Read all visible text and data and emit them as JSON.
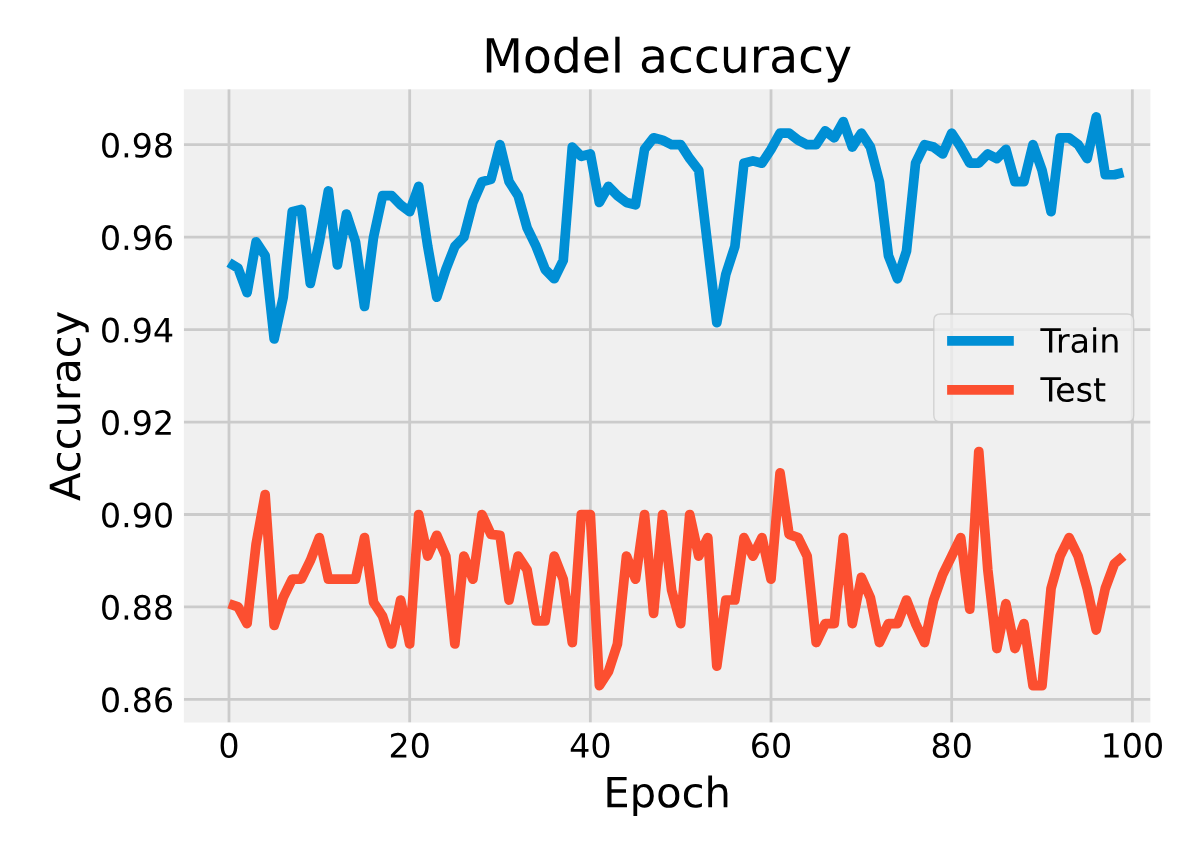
{
  "chart_data": {
    "type": "line",
    "title": "Model accuracy",
    "xlabel": "Epoch",
    "ylabel": "Accuracy",
    "x": [
      0,
      1,
      2,
      3,
      4,
      5,
      6,
      7,
      8,
      9,
      10,
      11,
      12,
      13,
      14,
      15,
      16,
      17,
      18,
      19,
      20,
      21,
      22,
      23,
      24,
      25,
      26,
      27,
      28,
      29,
      30,
      31,
      32,
      33,
      34,
      35,
      36,
      37,
      38,
      39,
      40,
      41,
      42,
      43,
      44,
      45,
      46,
      47,
      48,
      49,
      50,
      51,
      52,
      53,
      54,
      55,
      56,
      57,
      58,
      59,
      60,
      61,
      62,
      63,
      64,
      65,
      66,
      67,
      68,
      69,
      70,
      71,
      72,
      73,
      74,
      75,
      76,
      77,
      78,
      79,
      80,
      81,
      82,
      83,
      84,
      85,
      86,
      87,
      88,
      89,
      90,
      91,
      92,
      93,
      94,
      95,
      96,
      97,
      98,
      99
    ],
    "series": [
      {
        "name": "Train",
        "color": "#008fd5",
        "values": [
          0.9545,
          0.9533,
          0.948,
          0.959,
          0.956,
          0.938,
          0.947,
          0.9655,
          0.966,
          0.95,
          0.959,
          0.97,
          0.954,
          0.965,
          0.959,
          0.945,
          0.96,
          0.969,
          0.969,
          0.967,
          0.9655,
          0.971,
          0.958,
          0.947,
          0.953,
          0.958,
          0.96,
          0.9675,
          0.972,
          0.9725,
          0.98,
          0.972,
          0.969,
          0.962,
          0.958,
          0.953,
          0.951,
          0.955,
          0.9795,
          0.9775,
          0.978,
          0.9675,
          0.971,
          0.969,
          0.9675,
          0.967,
          0.979,
          0.9815,
          0.981,
          0.98,
          0.98,
          0.977,
          0.9745,
          0.958,
          0.9415,
          0.952,
          0.958,
          0.976,
          0.9765,
          0.976,
          0.979,
          0.9825,
          0.9825,
          0.981,
          0.98,
          0.98,
          0.983,
          0.9815,
          0.985,
          0.9795,
          0.9825,
          0.9795,
          0.972,
          0.956,
          0.951,
          0.957,
          0.976,
          0.98,
          0.9795,
          0.978,
          0.9825,
          0.9795,
          0.976,
          0.976,
          0.978,
          0.977,
          0.979,
          0.972,
          0.972,
          0.98,
          0.9745,
          0.9655,
          0.9815,
          0.9815,
          0.98,
          0.977,
          0.986,
          0.9735,
          0.9735,
          0.974
        ]
      },
      {
        "name": "Test",
        "color": "#fc4f30",
        "values": [
          0.8807,
          0.88,
          0.8764,
          0.8936,
          0.9043,
          0.876,
          0.882,
          0.886,
          0.886,
          0.89,
          0.895,
          0.886,
          0.886,
          0.886,
          0.886,
          0.895,
          0.881,
          0.878,
          0.872,
          0.8815,
          0.872,
          0.9,
          0.891,
          0.8955,
          0.891,
          0.872,
          0.891,
          0.886,
          0.9,
          0.8957,
          0.8955,
          0.8815,
          0.891,
          0.888,
          0.877,
          0.877,
          0.891,
          0.886,
          0.8723,
          0.9,
          0.9,
          0.863,
          0.866,
          0.872,
          0.891,
          0.886,
          0.9,
          0.8786,
          0.9,
          0.8836,
          0.8764,
          0.9,
          0.891,
          0.895,
          0.8672,
          0.8815,
          0.8815,
          0.895,
          0.891,
          0.895,
          0.886,
          0.909,
          0.8957,
          0.895,
          0.891,
          0.8723,
          0.8764,
          0.8764,
          0.895,
          0.8764,
          0.8864,
          0.882,
          0.8723,
          0.8764,
          0.8764,
          0.8815,
          0.8764,
          0.8723,
          0.8815,
          0.887,
          0.891,
          0.895,
          0.8795,
          0.9136,
          0.888,
          0.871,
          0.8807,
          0.871,
          0.8764,
          0.863,
          0.863,
          0.884,
          0.891,
          0.895,
          0.891,
          0.884,
          0.875,
          0.884,
          0.8893,
          0.891
        ]
      }
    ],
    "xlim": [
      -5,
      102
    ],
    "ylim": [
      0.855,
      0.992
    ],
    "xticks": [
      0,
      20,
      40,
      60,
      80,
      100
    ],
    "yticks": [
      {
        "value": 0.86,
        "label": "0.86"
      },
      {
        "value": 0.88,
        "label": "0.88"
      },
      {
        "value": 0.9,
        "label": "0.90"
      },
      {
        "value": 0.92,
        "label": "0.92"
      },
      {
        "value": 0.94,
        "label": "0.94"
      },
      {
        "value": 0.96,
        "label": "0.96"
      },
      {
        "value": 0.98,
        "label": "0.98"
      }
    ],
    "grid": true,
    "legend": "center right",
    "marker": "none",
    "line_style": "solid"
  }
}
